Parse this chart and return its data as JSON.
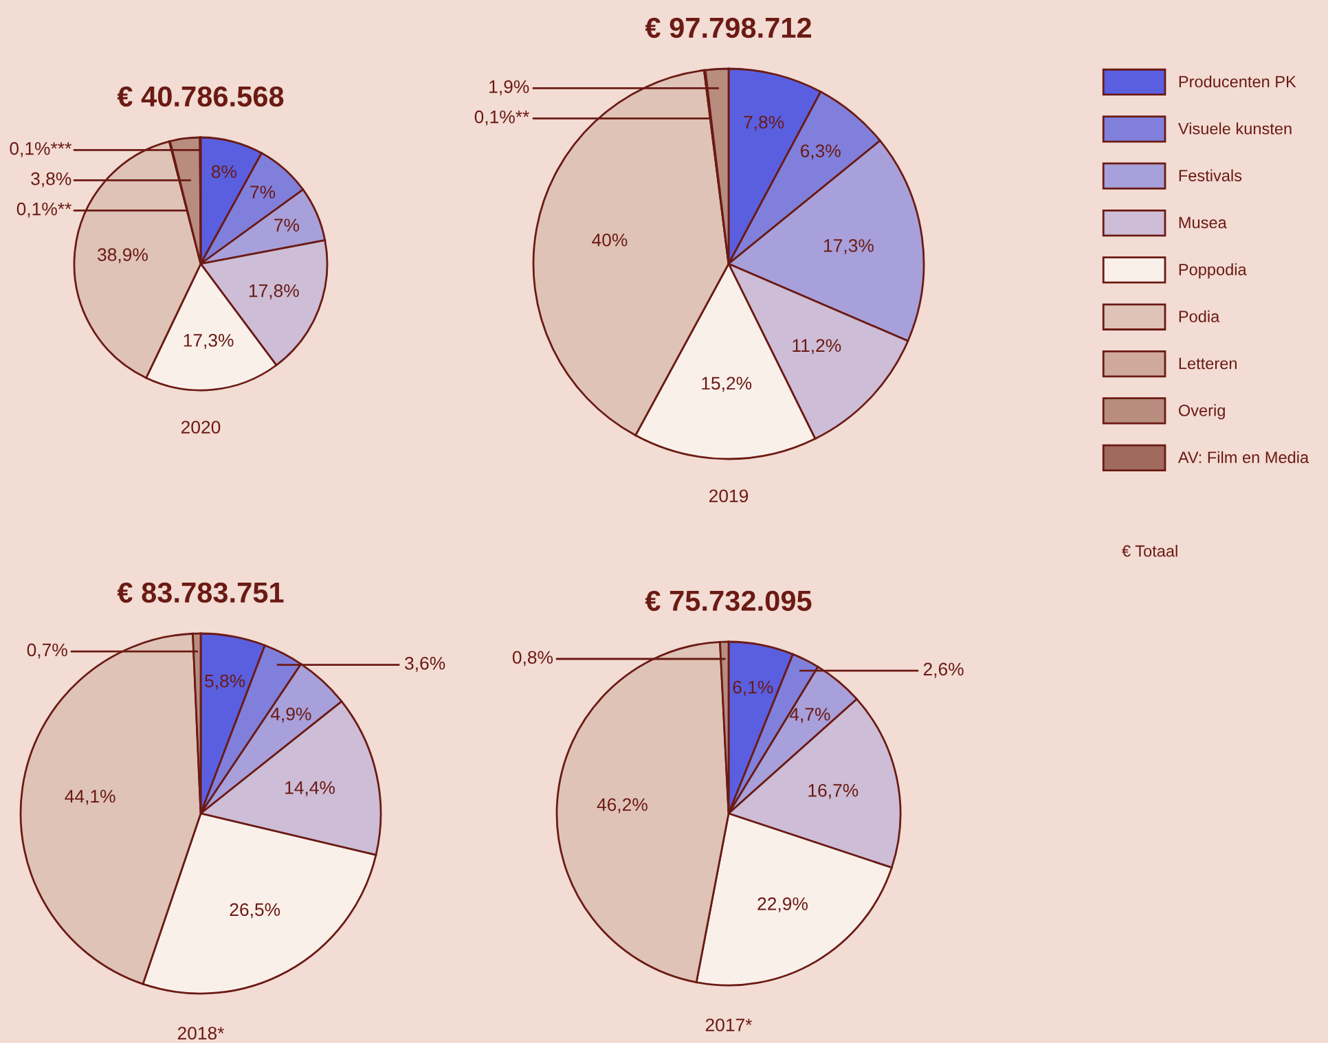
{
  "chart_data": [
    {
      "type": "pie",
      "title": "€ 40.786.568",
      "subtitle": "2020",
      "legend": "right",
      "annotations": [
        "€ Totaal"
      ],
      "categories": [
        "Producenten PK",
        "Visuele kunsten",
        "Festivals",
        "Musea",
        "Poppodia",
        "Podia",
        "Letteren",
        "Overig",
        "AV: Film en Media"
      ],
      "values": [
        8,
        7,
        7,
        17.8,
        17.3,
        38.9,
        0.1,
        3.8,
        0.1
      ],
      "value_labels": [
        "8%",
        "7%",
        "7%",
        "17,8%",
        "17,3%",
        "38,9%",
        "0,1%**",
        "3,8%",
        "0,1%***"
      ],
      "colors": [
        "#5a5fe0",
        "#8080dc",
        "#a8a0da",
        "#cdbdd6",
        "#faf0ea",
        "#dfc3b7",
        "#cfa99c",
        "#b88d80",
        "#a06a5e"
      ]
    },
    {
      "type": "pie",
      "title": "€ 97.798.712",
      "subtitle": "2019",
      "values": [
        7.8,
        6.3,
        17.3,
        11.2,
        15.2,
        40,
        0.1,
        1.9,
        null
      ],
      "value_labels": [
        "7,8%",
        "6,3%",
        "17,3%",
        "11,2%",
        "15,2%",
        "40%",
        "0,1%**",
        "1,9%",
        null
      ],
      "colors": [
        "#5a5fe0",
        "#8080dc",
        "#a8a0da",
        "#cdbdd6",
        "#faf0ea",
        "#dfc3b7",
        "#cfa99c",
        "#b88d80",
        "#a06a5e"
      ]
    },
    {
      "type": "pie",
      "title": "€ 83.783.751",
      "subtitle": "2018*",
      "values": [
        5.8,
        3.6,
        4.9,
        14.4,
        26.5,
        44.1,
        null,
        0.7,
        null
      ],
      "value_labels": [
        "5,8%",
        "3,6%",
        "4,9%",
        "14,4%",
        "26,5%",
        "44,1%",
        null,
        "0,7%",
        null
      ],
      "colors": [
        "#5a5fe0",
        "#8080dc",
        "#a8a0da",
        "#cdbdd6",
        "#faf0ea",
        "#dfc3b7",
        "#cfa99c",
        "#b88d80",
        "#a06a5e"
      ]
    },
    {
      "type": "pie",
      "title": "€ 75.732.095",
      "subtitle": "2017*",
      "values": [
        6.1,
        2.6,
        4.7,
        16.7,
        22.9,
        46.2,
        null,
        0.8,
        null
      ],
      "value_labels": [
        "6,1%",
        "2,6%",
        "4,7%",
        "16,7%",
        "22,9%",
        "46,2%",
        null,
        "0,8%",
        null
      ],
      "colors": [
        "#5a5fe0",
        "#8080dc",
        "#a8a0da",
        "#cdbdd6",
        "#faf0ea",
        "#dfc3b7",
        "#cfa99c",
        "#b88d80",
        "#a06a5e"
      ]
    }
  ]
}
